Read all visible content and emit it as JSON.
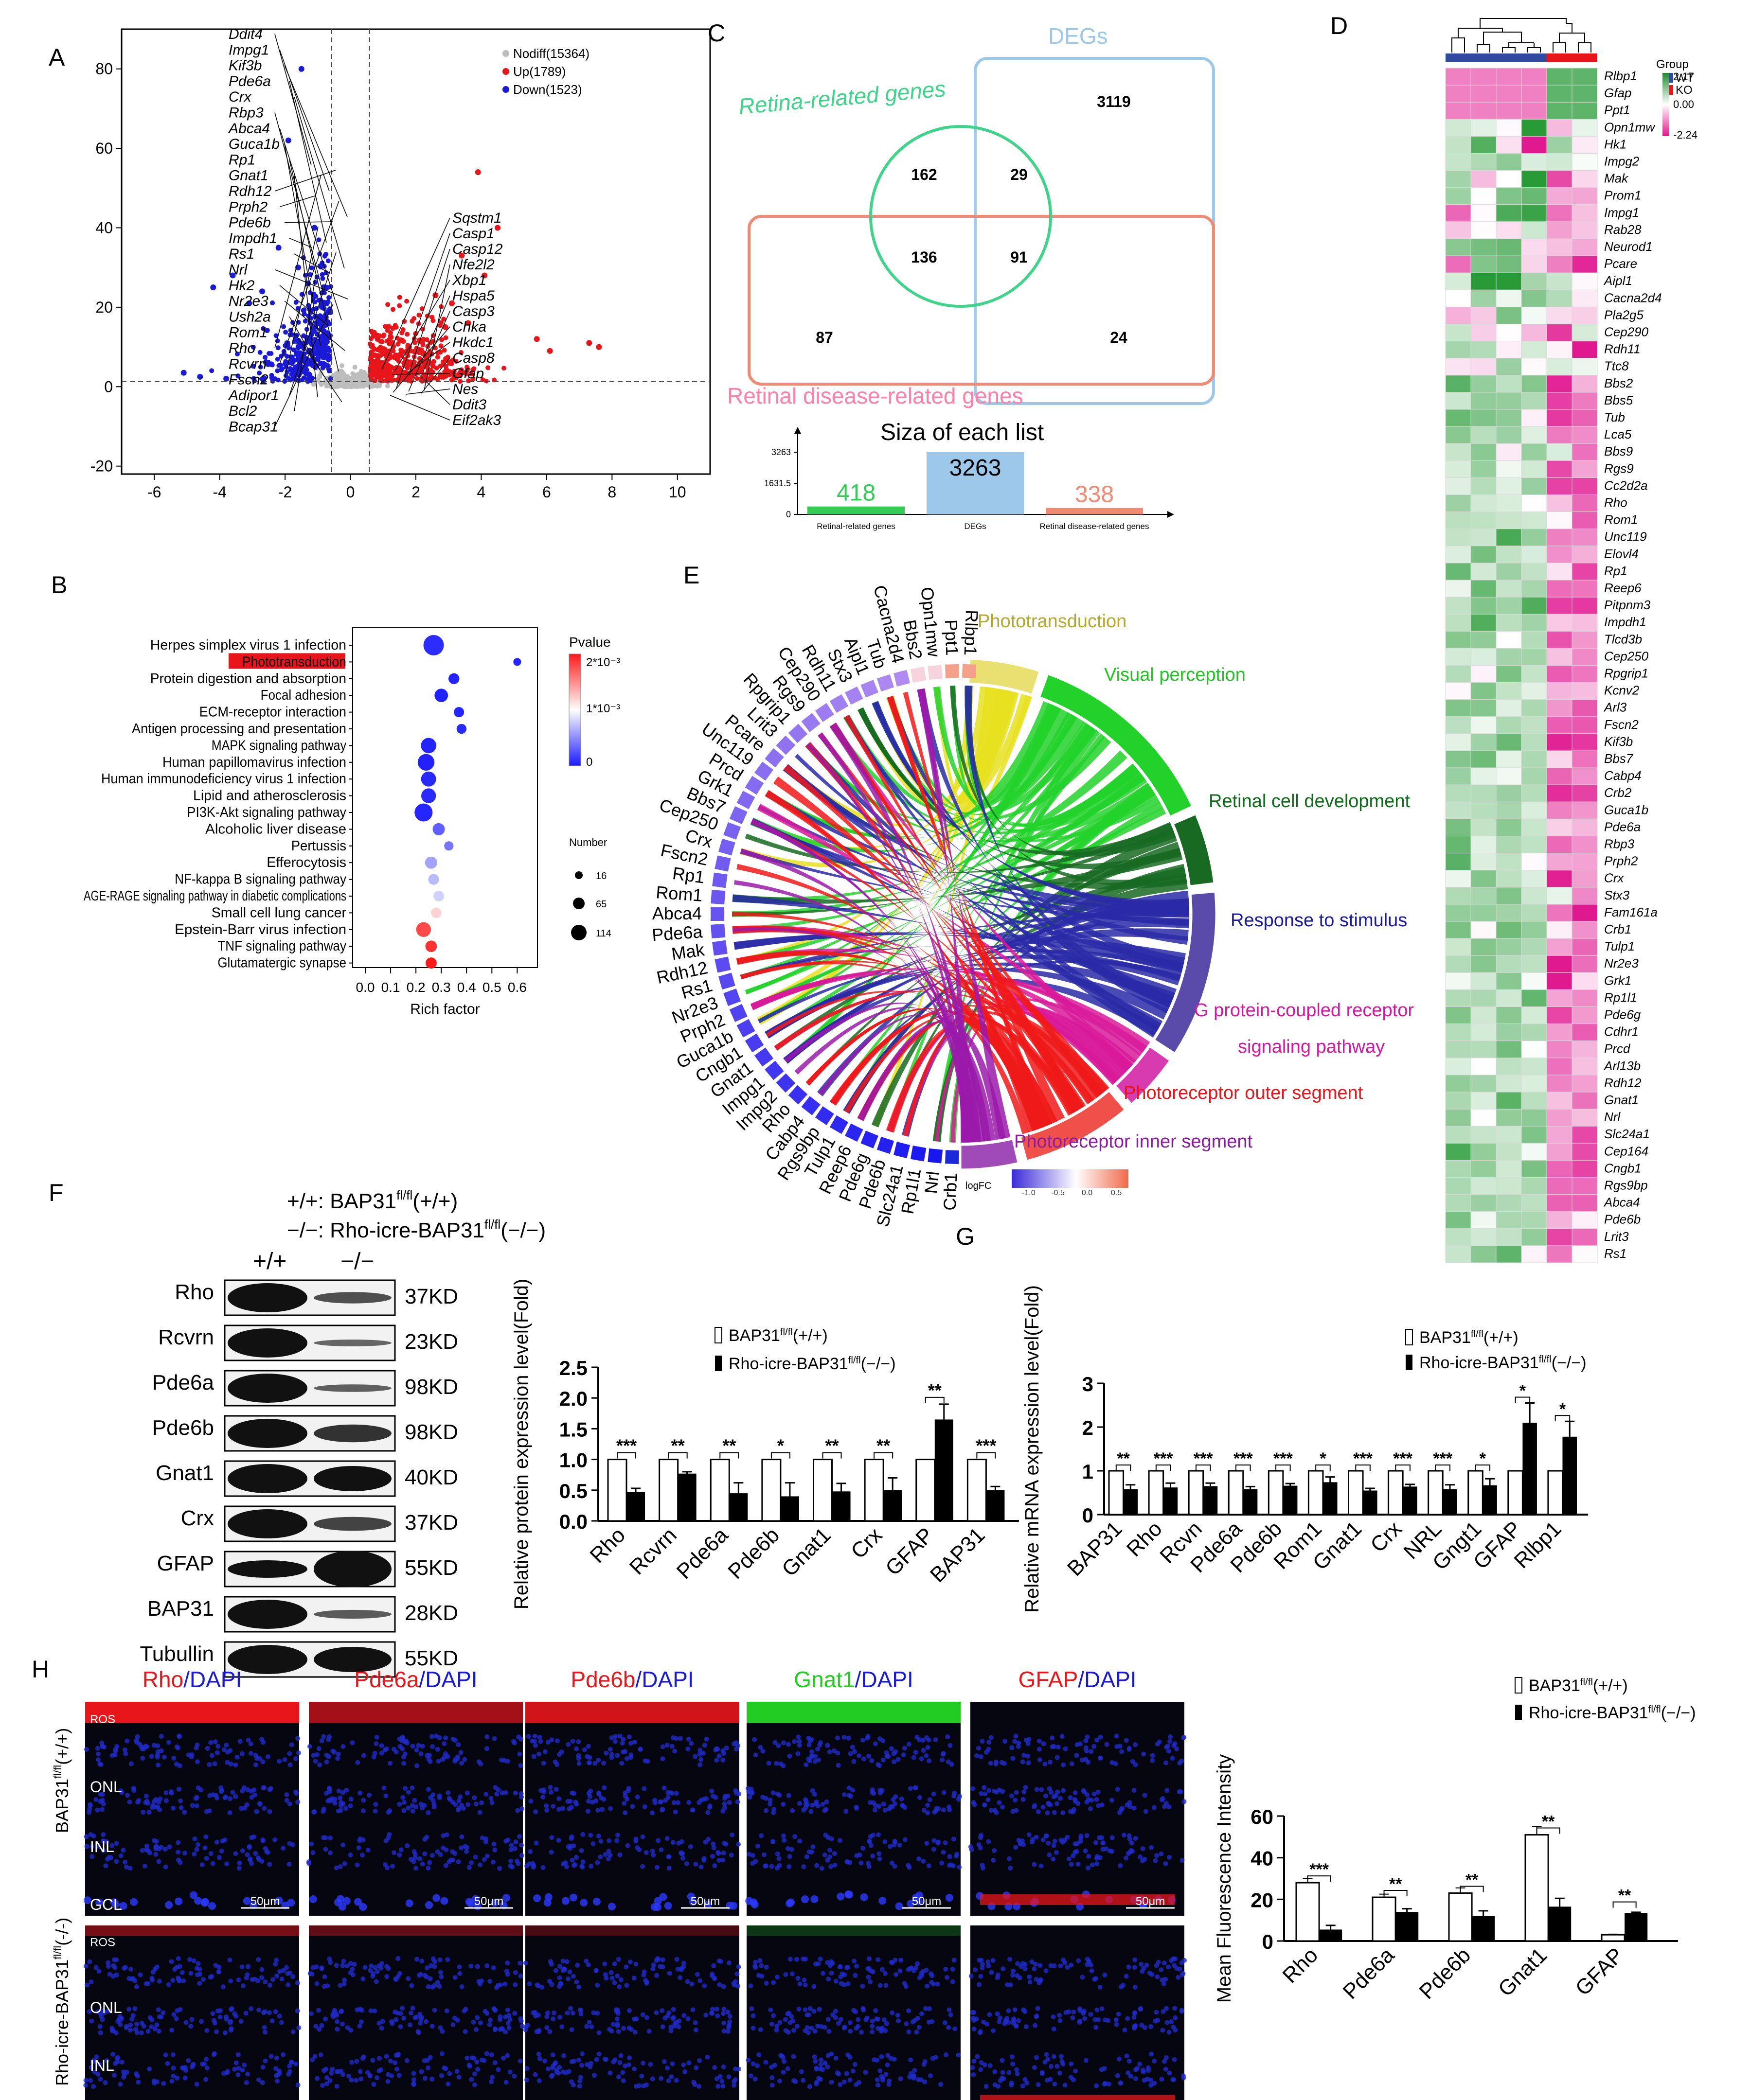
{
  "panels": [
    "A",
    "B",
    "C",
    "D",
    "E",
    "F",
    "G",
    "H"
  ],
  "colors": {
    "up": "#e8161b",
    "down": "#1a1ad6",
    "nodiff": "#bdbdbd",
    "green": "#35d27a",
    "pink": "#ff6f91",
    "blue": "#1a1ad6",
    "red": "#e8161b",
    "purple": "#7a3db8"
  },
  "panel_a": {
    "legend": [
      "Nodiff(15364)",
      "Up(1789)",
      "Down(1523)"
    ],
    "left_genes": [
      "Ddit4",
      "Impg1",
      "Kif3b",
      "Pde6a",
      "Crx",
      "Rbp3",
      "Abca4",
      "Guca1b",
      "Rp1",
      "Gnat1",
      "Rdh12",
      "Prph2",
      "Pde6b",
      "Impdh1",
      "Rs1",
      "Nrl",
      "Hk2",
      "Nr2e3",
      "Ush2a",
      "Rom1",
      "Rho",
      "Rcvrn",
      "Fscn2",
      "Adipor1",
      "Bcl2",
      "Bcap31"
    ],
    "right_genes": [
      "Sqstm1",
      "Casp1",
      "Casp12",
      "Nfe2l2",
      "Xbp1",
      "Hspa5",
      "Casp3",
      "Chka",
      "Hkdc1",
      "Casp8",
      "Gfap",
      "Nes",
      "Ddit3",
      "Eif2ak3"
    ]
  },
  "panel_c": {
    "set_labels": {
      "retina": "Retina-related genes",
      "degs": "DEGs",
      "disease": "Retinal disease-related genes"
    },
    "counts": {
      "ret_only": "162",
      "ret_deg": "29",
      "deg_only": "3119",
      "ret_dis": "136",
      "all": "91",
      "dis_only": "87",
      "deg_dis": "24"
    },
    "bar_title": "Siza of each list",
    "bar_ticks": [
      "3263",
      "1631.5",
      "0"
    ]
  },
  "panel_d": {
    "legend_title": "Group",
    "groups": [
      "WT",
      "KO"
    ],
    "scale": [
      "2.17",
      "0.00",
      "-2.24"
    ],
    "genes": [
      "Rlbp1",
      "Gfap",
      "Ppt1",
      "Opn1mw",
      "Hk1",
      "Impg2",
      "Mak",
      "Prom1",
      "Impg1",
      "Rab28",
      "Neurod1",
      "Pcare",
      "Aipl1",
      "Cacna2d4",
      "Pla2g5",
      "Cep290",
      "Rdh11",
      "Ttc8",
      "Bbs2",
      "Bbs5",
      "Tub",
      "Lca5",
      "Bbs9",
      "Rgs9",
      "Cc2d2a",
      "Rho",
      "Rom1",
      "Unc119",
      "Elovl4",
      "Rp1",
      "Reep6",
      "Pitpnm3",
      "Impdh1",
      "Tlcd3b",
      "Cep250",
      "Rpgrip1",
      "Kcnv2",
      "Arl3",
      "Fscn2",
      "Kif3b",
      "Bbs7",
      "Cabp4",
      "Crb2",
      "Guca1b",
      "Pde6a",
      "Rbp3",
      "Prph2",
      "Crx",
      "Stx3",
      "Fam161a",
      "Crb1",
      "Tulp1",
      "Nr2e3",
      "Grk1",
      "Rp1l1",
      "Pde6g",
      "Cdhr1",
      "Prcd",
      "Arl13b",
      "Rdh12",
      "Gnat1",
      "Nrl",
      "Slc24a1",
      "Cep164",
      "Cngb1",
      "Rgs9bp",
      "Abca4",
      "Pde6b",
      "Lrit3",
      "Rs1"
    ]
  },
  "panel_e": {
    "terms": [
      "Phototransduction",
      "Visual perception",
      "Retinal cell development",
      "Response to stimulus",
      "G protein-coupled receptor",
      "signaling pathway",
      "Photoreceptor outer segment",
      "Photoreceptor inner segment"
    ],
    "genes": [
      "Rlbp1",
      "Ppt1",
      "Opn1mw",
      "Bbs2",
      "Cacna2d4",
      "Tub",
      "Aipl1",
      "Stx3",
      "Rdh11",
      "Cep290",
      "Rgs9",
      "Rpgrip1",
      "Lrit3",
      "Pcare",
      "Unc119",
      "Prcd",
      "Grk1",
      "Bbs7",
      "Cep250",
      "Crx",
      "Fscn2",
      "Rp1",
      "Rom1",
      "Abca4",
      "Pde6a",
      "Mak",
      "Rdh12",
      "Rs1",
      "Nr2e3",
      "Prph2",
      "Guca1b",
      "Cngb1",
      "Gnat1",
      "Impg1",
      "Impg2",
      "Rho",
      "Cabp4",
      "Rgs9bp",
      "Tulp1",
      "Reep6",
      "Pde6g",
      "Pde6b",
      "Slc24a1",
      "Rp1l1",
      "Nrl",
      "Crb1"
    ],
    "logfc_label": "logFC",
    "logfc_ticks": [
      "-1.0",
      "-0.5",
      "0.0",
      "0.5"
    ]
  },
  "panel_f": {
    "legend_line1": "+/+: BAP31",
    "legend_line2": "−/−: Rho-icre-BAP31",
    "sup": "fl/fl",
    "suffix_ctrl": "(+/+)",
    "suffix_ko": "(−/−)",
    "col_ctrl": "+/+",
    "col_ko": "−/−",
    "blots": [
      {
        "name": "Rho",
        "kd": "37KD"
      },
      {
        "name": "Rcvrn",
        "kd": "23KD"
      },
      {
        "name": "Pde6a",
        "kd": "98KD"
      },
      {
        "name": "Pde6b",
        "kd": "98KD"
      },
      {
        "name": "Gnat1",
        "kd": "40KD"
      },
      {
        "name": "Crx",
        "kd": "37KD"
      },
      {
        "name": "GFAP",
        "kd": "55KD"
      },
      {
        "name": "BAP31",
        "kd": "28KD"
      },
      {
        "name": "Tubullin",
        "kd": "55KD"
      }
    ]
  },
  "legend_bars": {
    "ctrl": "BAP31",
    "ko": "Rho-icre-BAP31",
    "sup": "fl/fl",
    "ctrl_suffix": "(+/+)",
    "ko_suffix": "(−/−)"
  },
  "chart_data": [
    {
      "id": "A",
      "type": "scatter",
      "title": "",
      "xlabel": "",
      "ylabel": "",
      "xlim": [
        -7,
        11
      ],
      "ylim": [
        -22,
        90
      ],
      "xticks": [
        -6,
        -4,
        -2,
        0,
        2,
        4,
        6,
        8,
        10
      ],
      "yticks": [
        -20,
        0,
        20,
        40,
        60,
        80
      ],
      "thresholds": {
        "x": [
          -0.58,
          0.58
        ],
        "y": 1.3
      },
      "series": [
        {
          "name": "Nodiff(15364)",
          "color": "#bdbdbd"
        },
        {
          "name": "Up(1789)",
          "color": "#e8161b"
        },
        {
          "name": "Down(1523)",
          "color": "#1a1ad6"
        }
      ],
      "note": "individual gene points estimated; dense cloud generated from series counts"
    },
    {
      "id": "B",
      "type": "scatter",
      "xlabel": "Rich factor",
      "xlim": [
        -0.05,
        0.68
      ],
      "xticks": [
        "0.0",
        "0.1",
        "0.2",
        "0.3",
        "0.4",
        "0.5",
        "0.6"
      ],
      "legend_title": "Pvalue",
      "color_ticks": [
        "2*10⁻³",
        "1*10⁻³",
        "0"
      ],
      "size_title": "Number",
      "size_ticks": [
        "16",
        "65",
        "114"
      ],
      "highlight": "Phototransduction",
      "pathways": [
        {
          "name": "Herpes simplex virus 1 infection",
          "x": 0.27,
          "n": 114,
          "p": 8e-05
        },
        {
          "name": "Phototransduction",
          "x": 0.6,
          "n": 16,
          "p": 5e-05
        },
        {
          "name": "Protein digestion and absorption",
          "x": 0.35,
          "n": 40,
          "p": 4e-05
        },
        {
          "name": "Focal adhesion",
          "x": 0.3,
          "n": 60,
          "p": 3e-05
        },
        {
          "name": "ECM-receptor interaction",
          "x": 0.37,
          "n": 35,
          "p": 5e-05
        },
        {
          "name": "Antigen processing and presentation",
          "x": 0.38,
          "n": 32,
          "p": 6e-05
        },
        {
          "name": "MAPK signaling pathway",
          "x": 0.25,
          "n": 75,
          "p": 4e-05
        },
        {
          "name": "Human papillomavirus infection",
          "x": 0.24,
          "n": 85,
          "p": 3e-05
        },
        {
          "name": "Human immunodeficiency virus 1 infection",
          "x": 0.25,
          "n": 72,
          "p": 6e-05
        },
        {
          "name": "Lipid and atherosclerosis",
          "x": 0.25,
          "n": 70,
          "p": 7e-05
        },
        {
          "name": "PI3K-Akt signaling pathway",
          "x": 0.23,
          "n": 95,
          "p": 5e-05
        },
        {
          "name": "Alcoholic liver disease",
          "x": 0.29,
          "n": 50,
          "p": 0.0003
        },
        {
          "name": "Pertussis",
          "x": 0.33,
          "n": 28,
          "p": 0.0004
        },
        {
          "name": "Efferocytosis",
          "x": 0.26,
          "n": 50,
          "p": 0.0006
        },
        {
          "name": "NF-kappa B signaling pathway",
          "x": 0.27,
          "n": 40,
          "p": 0.0007
        },
        {
          "name": "AGE-RAGE signaling pathway in diabetic complications",
          "x": 0.29,
          "n": 38,
          "p": 0.0008
        },
        {
          "name": "Small cell lung cancer",
          "x": 0.28,
          "n": 36,
          "p": 0.0012
        },
        {
          "name": "Epstein-Barr virus infection",
          "x": 0.23,
          "n": 70,
          "p": 0.0018
        },
        {
          "name": "TNF signaling pathway",
          "x": 0.26,
          "n": 45,
          "p": 0.0019
        },
        {
          "name": "Glutamatergic synapse",
          "x": 0.26,
          "n": 42,
          "p": 0.002
        }
      ]
    },
    {
      "id": "C-bar",
      "type": "bar",
      "title": "Siza of each list",
      "categories": [
        "Retinal-related genes",
        "DEGs",
        "Retinal disease-related genes"
      ],
      "values": [
        418,
        3263,
        338
      ],
      "ylim": [
        0,
        3263
      ],
      "colors": [
        "#33cc55",
        "#9dc8ea",
        "#f08a73"
      ]
    },
    {
      "id": "F-bar",
      "type": "bar",
      "ylabel": "Relative protein expression level(Fold)",
      "ylim": [
        0,
        2.5
      ],
      "yticks": [
        "0.0",
        "0.5",
        "1.0",
        "1.5",
        "2.0",
        "2.5"
      ],
      "categories": [
        "Rho",
        "Rcvrn",
        "Pde6a",
        "Pde6b",
        "Gnat1",
        "Crx",
        "GFAP",
        "BAP31"
      ],
      "series": [
        {
          "name": "BAP31 fl/fl (+/+)",
          "values": [
            1,
            1,
            1,
            1,
            1,
            1,
            1,
            1
          ]
        },
        {
          "name": "Rho-icre-BAP31 fl/fl (−/−)",
          "values": [
            0.47,
            0.77,
            0.45,
            0.4,
            0.48,
            0.5,
            1.65,
            0.5
          ]
        }
      ],
      "errors": [
        0.06,
        0.03,
        0.17,
        0.22,
        0.13,
        0.2,
        0.25,
        0.06
      ],
      "significance": [
        "***",
        "**",
        "**",
        "*",
        "**",
        "**",
        "**",
        "***"
      ]
    },
    {
      "id": "G-bar",
      "type": "bar",
      "ylabel": "Relative mRNA expression level(Fold)",
      "ylim": [
        0,
        3
      ],
      "yticks": [
        "0",
        "1",
        "2",
        "3"
      ],
      "categories": [
        "BAP31",
        "Rho",
        "Rcvn",
        "Pde6a",
        "Pde6b",
        "Rom1",
        "Gnat1",
        "Crx",
        "NRL",
        "Gngt1",
        "GFAP",
        "Rlbp1"
      ],
      "series": [
        {
          "name": "BAP31 fl/fl (+/+)",
          "values": [
            1,
            1,
            1,
            1,
            1,
            1,
            1,
            1,
            1,
            1,
            1,
            1
          ]
        },
        {
          "name": "Rho-icre-BAP31 fl/fl (−/−)",
          "values": [
            0.58,
            0.62,
            0.65,
            0.58,
            0.66,
            0.74,
            0.55,
            0.64,
            0.58,
            0.67,
            2.1,
            1.78
          ]
        }
      ],
      "errors": [
        0.1,
        0.1,
        0.07,
        0.06,
        0.05,
        0.12,
        0.05,
        0.05,
        0.1,
        0.15,
        0.45,
        0.35
      ],
      "significance": [
        "**",
        "***",
        "***",
        "***",
        "***",
        "*",
        "***",
        "***",
        "***",
        "*",
        "*",
        "*"
      ]
    },
    {
      "id": "H-bar",
      "type": "bar",
      "ylabel": "Mean Fluorescence Intensity",
      "ylim": [
        0,
        60
      ],
      "yticks": [
        "0",
        "20",
        "40",
        "60"
      ],
      "categories": [
        "Rho",
        "Pde6a",
        "Pde6b",
        "Gnat1",
        "GFAP"
      ],
      "series": [
        {
          "name": "BAP31 fl/fl (+/+)",
          "values": [
            28,
            21,
            23,
            51,
            3
          ]
        },
        {
          "name": "Rho-icre-BAP31 fl/fl (−/−)",
          "values": [
            5.5,
            14,
            12,
            16.5,
            13.5
          ]
        }
      ],
      "errors": [
        2,
        1.5,
        2.5,
        4,
        0.3
      ],
      "errors_ko": [
        0,
        1.5,
        1,
        0.8,
        2
      ],
      "significance": [
        "***",
        "**",
        "**",
        "**",
        "**"
      ]
    }
  ],
  "panel_h": {
    "columns": [
      {
        "marker": "Rho",
        "marker_color": "#e8161b",
        "channel_color": "#e8161b"
      },
      {
        "marker": "Pde6a",
        "marker_color": "#e8161b",
        "channel_color": "#e8161b"
      },
      {
        "marker": "Pde6b",
        "marker_color": "#e8161b",
        "channel_color": "#e8161b"
      },
      {
        "marker": "Gnat1",
        "marker_color": "#22cc22",
        "channel_color": "#22cc22"
      },
      {
        "marker": "GFAP",
        "marker_color": "#e8161b",
        "channel_color": "#e8161b"
      }
    ],
    "dapi": "/DAPI",
    "row_ctrl_a": "BAP31",
    "row_ctrl_b": "(+/+)",
    "row_ko_a": "Rho-icre-BAP31",
    "row_ko_b": "(-/-)",
    "sup": "fl/fl",
    "layers": [
      "ROS",
      "ONL",
      "INL",
      "GCL"
    ],
    "scale_bar": "50μm"
  }
}
